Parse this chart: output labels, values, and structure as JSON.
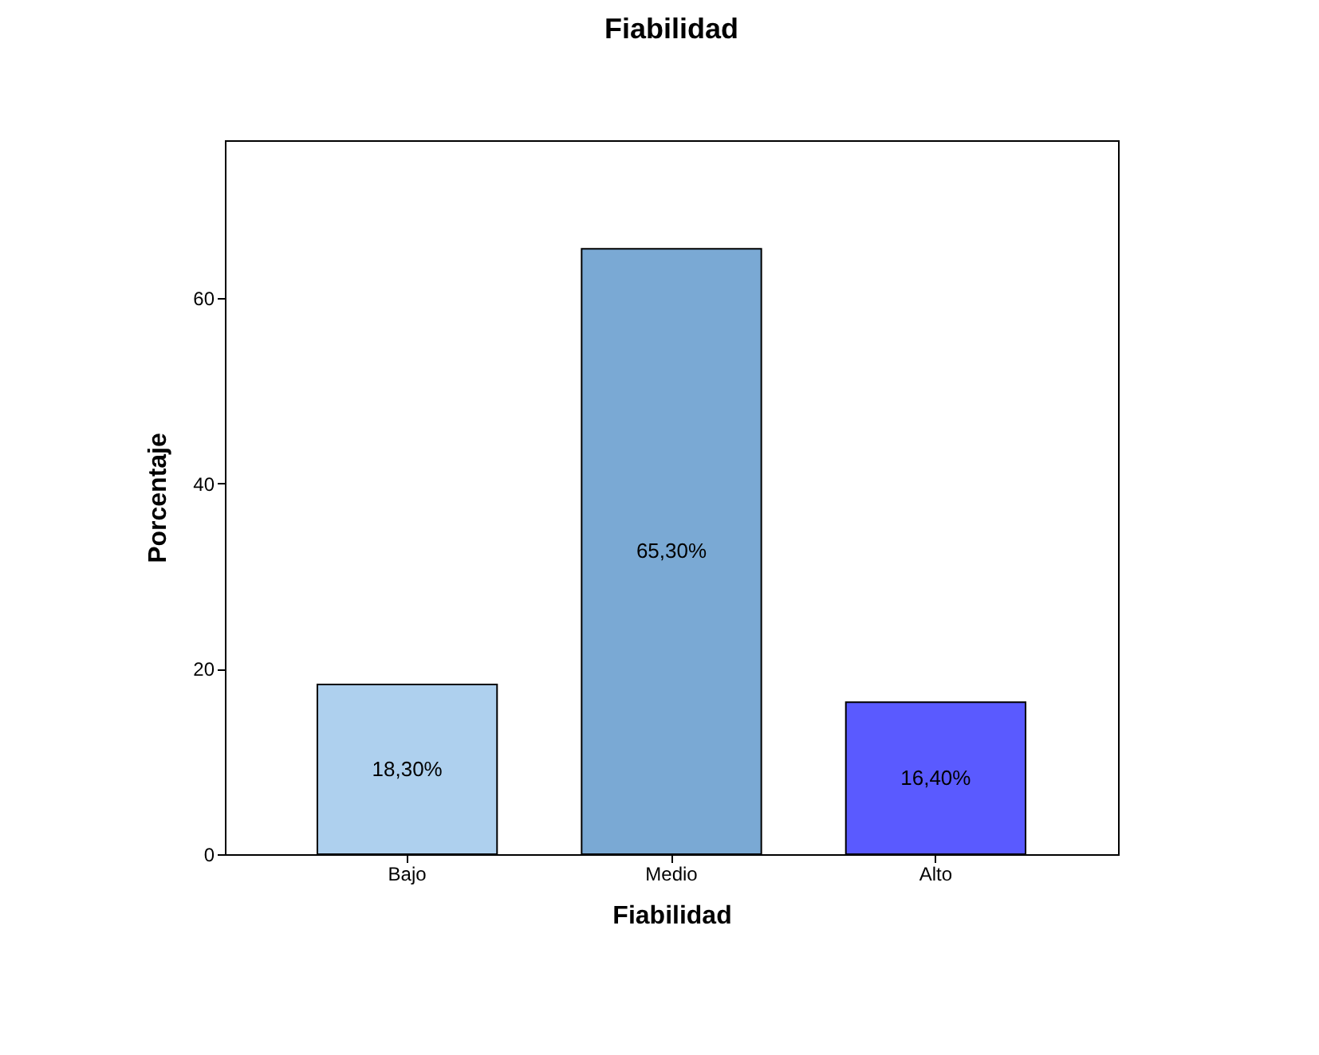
{
  "chart_data": {
    "type": "bar",
    "title": "Fiabilidad",
    "xlabel": "Fiabilidad",
    "ylabel": "Porcentaje",
    "categories": [
      "Bajo",
      "Medio",
      "Alto"
    ],
    "values": [
      18.3,
      65.3,
      16.4
    ],
    "colors": [
      "#aed0ee",
      "#7aa9d4",
      "#5a5aff"
    ],
    "value_labels": [
      "18,30%",
      "65,30%",
      "16,40%"
    ],
    "ylim": [
      0,
      77
    ],
    "yticks": [
      0,
      20,
      40,
      60
    ],
    "grid": false,
    "legend": false
  }
}
